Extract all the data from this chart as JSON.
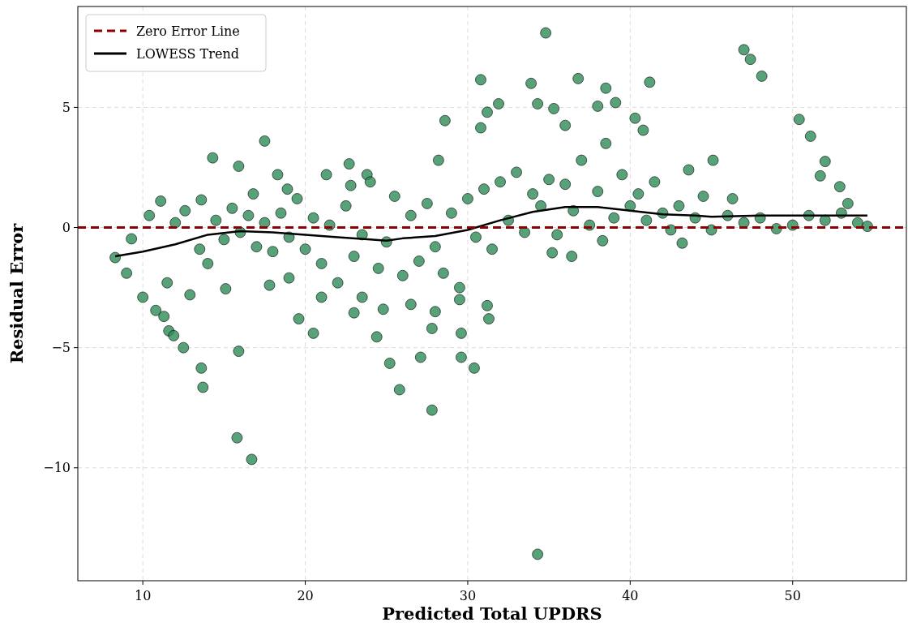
{
  "chart_data": {
    "type": "scatter",
    "xlabel": "Predicted Total UPDRS",
    "ylabel": "Residual Error",
    "xlim": [
      6,
      57
    ],
    "ylim": [
      -14.7,
      9.2
    ],
    "xticks": [
      10,
      20,
      30,
      40,
      50
    ],
    "yticks": [
      {
        "value": -10,
        "label": "−10"
      },
      {
        "value": -5,
        "label": "−5"
      },
      0,
      5
    ],
    "grid": true,
    "legend": "top left",
    "marker": "circle",
    "ref_lines": [
      {
        "axis": "y",
        "value": 0,
        "label": "Zero Error Line",
        "color": "#8b0000",
        "line_style": "dashed"
      }
    ],
    "series": [
      {
        "color": "#2e8b57",
        "x": [
          8.3,
          9.3,
          9.0,
          10,
          10.4,
          10.8,
          11.1,
          11.3,
          11.5,
          11.6,
          11.9,
          12.5,
          12.6,
          12.9,
          13.6,
          13.7,
          13.6,
          14.3,
          15.8,
          15.9,
          16.7,
          15.9,
          17.5,
          15.1,
          17.8,
          19.6,
          20.5,
          18.9,
          18.3,
          21.3,
          22.8,
          22.7,
          23.8,
          23.0,
          24.4,
          25.2,
          25.8,
          27.1,
          27.8,
          28.6,
          28.2,
          29.6,
          29.6,
          30.4,
          30.8,
          30.8,
          31.2,
          31.9,
          31.3,
          31.2,
          33.9,
          34.3,
          34.8,
          35.3,
          34.3,
          36.8,
          36.0,
          38.0,
          38.5,
          39.1,
          41.2,
          40.8,
          40.3,
          35.2,
          36.4,
          38.3,
          43.2,
          45.1,
          43.6,
          46.3,
          47.0,
          47.4,
          48.1,
          50.4,
          51.1,
          51.7,
          52.0,
          52.9,
          53.4,
          54.6,
          14.5,
          15,
          15.5,
          16,
          16.5,
          17,
          17.5,
          18,
          18.5,
          19,
          19.5,
          20,
          20.5,
          21,
          21.5,
          22,
          22.5,
          23,
          23.5,
          24,
          24.5,
          25,
          25.5,
          26,
          26.5,
          27,
          27.5,
          28,
          28.5,
          29,
          29.5,
          30,
          30.5,
          31,
          31.5,
          32,
          32.5,
          33,
          33.5,
          34,
          34.5,
          35,
          35.5,
          36,
          36.5,
          37,
          37.5,
          38,
          38.5,
          39,
          39.5,
          40,
          40.5,
          41,
          41.5,
          42,
          42.5,
          43,
          44,
          44.5,
          45,
          46,
          47,
          48,
          49,
          50,
          51,
          52,
          53,
          54,
          12,
          13.5,
          14,
          16.8,
          19,
          21,
          23.5,
          26.5,
          28,
          29.5,
          27.8,
          24.8
        ],
        "values": [
          -1.25,
          -0.47,
          -1.9,
          -2.9,
          0.5,
          -3.45,
          1.1,
          -3.7,
          -2.3,
          -4.3,
          -4.5,
          -5.0,
          0.7,
          -2.8,
          -5.85,
          -6.65,
          1.15,
          2.9,
          -8.75,
          -5.15,
          -9.65,
          2.55,
          3.6,
          -2.55,
          -2.4,
          -3.8,
          -4.4,
          1.6,
          2.2,
          2.2,
          1.75,
          2.65,
          2.2,
          -3.55,
          -4.55,
          -5.65,
          -6.75,
          -5.4,
          -7.6,
          4.45,
          2.8,
          -4.4,
          -5.4,
          -5.85,
          6.15,
          4.15,
          4.8,
          5.15,
          -3.8,
          -3.25,
          6.0,
          -13.6,
          8.1,
          4.95,
          5.15,
          6.2,
          4.25,
          5.05,
          5.8,
          5.2,
          6.05,
          4.05,
          4.55,
          -1.05,
          -1.2,
          -0.55,
          -0.65,
          2.8,
          2.4,
          1.2,
          7.4,
          7.0,
          6.3,
          4.5,
          3.8,
          2.15,
          2.75,
          1.7,
          1.0,
          0.05,
          0.3,
          -0.5,
          0.8,
          -0.2,
          0.5,
          -0.8,
          0.2,
          -1.0,
          0.6,
          -0.4,
          1.2,
          -0.9,
          0.4,
          -1.5,
          0.1,
          -2.3,
          0.9,
          -1.2,
          -0.3,
          1.9,
          -1.7,
          -0.6,
          1.3,
          -2.0,
          0.5,
          -1.4,
          1.0,
          -0.8,
          -1.9,
          0.6,
          -3.0,
          1.2,
          -0.4,
          1.6,
          -0.9,
          1.9,
          0.3,
          2.3,
          -0.2,
          1.4,
          0.9,
          2.0,
          -0.3,
          1.8,
          0.7,
          2.8,
          0.1,
          1.5,
          3.5,
          0.4,
          2.2,
          0.9,
          1.4,
          0.3,
          1.9,
          0.6,
          -0.1,
          0.9,
          0.4,
          1.3,
          -0.1,
          0.5,
          0.2,
          0.4,
          -0.05,
          0.1,
          0.5,
          0.3,
          0.6,
          0.2,
          0.2,
          -0.9,
          -1.5,
          1.4,
          -2.1,
          -2.9,
          -2.9,
          -3.2,
          -3.5,
          -2.5,
          -4.2,
          -3.4
        ]
      },
      {
        "type": "line",
        "name": "LOWESS Trend",
        "color": "#000000",
        "marker": "none",
        "x": [
          8.3,
          10,
          12,
          14,
          16,
          18,
          20,
          22,
          24,
          25,
          26,
          28,
          30,
          32,
          34,
          36,
          38,
          40,
          42,
          44,
          45,
          48,
          50,
          52,
          54.6
        ],
        "values": [
          -1.2,
          -1.0,
          -0.7,
          -0.3,
          -0.15,
          -0.2,
          -0.3,
          -0.4,
          -0.5,
          -0.55,
          -0.45,
          -0.35,
          -0.1,
          0.3,
          0.65,
          0.85,
          0.85,
          0.7,
          0.55,
          0.5,
          0.45,
          0.5,
          0.5,
          0.5,
          0.5
        ]
      }
    ]
  }
}
